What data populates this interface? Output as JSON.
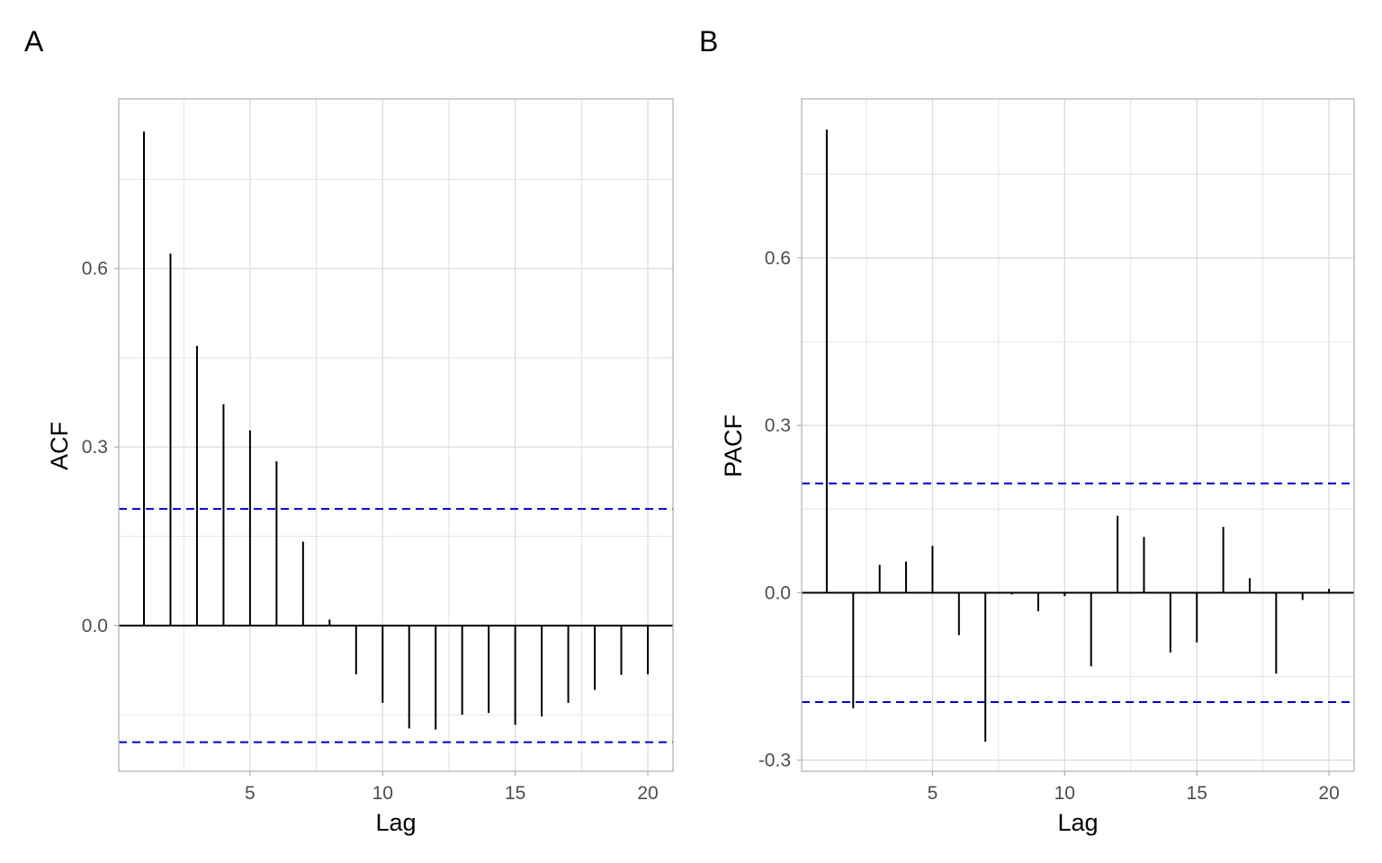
{
  "panels": {
    "a_label": "A",
    "b_label": "B"
  },
  "colors": {
    "bar": "#000000",
    "ci_line": "#0000cc",
    "grid": "#dcdcdc",
    "border": "#b3b3b3"
  },
  "chart_data": [
    {
      "type": "bar",
      "panel": "A",
      "xlabel": "Lag",
      "ylabel": "ACF",
      "xlim": [
        0.05,
        20.95
      ],
      "ylim": [
        -0.245,
        0.885
      ],
      "xticks": [
        5,
        10,
        15,
        20
      ],
      "xtick_labels": [
        "5",
        "10",
        "15",
        "20"
      ],
      "yticks": [
        0.0,
        0.3,
        0.6
      ],
      "ytick_labels": [
        "0.0",
        "0.3",
        "0.6"
      ],
      "grid": true,
      "confidence_band": [
        0.196,
        -0.196
      ],
      "x": [
        1,
        2,
        3,
        4,
        5,
        6,
        7,
        8,
        9,
        10,
        11,
        12,
        13,
        14,
        15,
        16,
        17,
        18,
        19,
        20
      ],
      "values": [
        0.83,
        0.625,
        0.47,
        0.372,
        0.328,
        0.276,
        0.141,
        0.01,
        -0.082,
        -0.13,
        -0.173,
        -0.175,
        -0.15,
        -0.147,
        -0.167,
        -0.153,
        -0.13,
        -0.108,
        -0.083,
        -0.082
      ]
    },
    {
      "type": "bar",
      "panel": "B",
      "xlabel": "Lag",
      "ylabel": "PACF",
      "xlim": [
        0.05,
        20.95
      ],
      "ylim": [
        -0.32,
        0.885
      ],
      "xticks": [
        5,
        10,
        15,
        20
      ],
      "xtick_labels": [
        "5",
        "10",
        "15",
        "20"
      ],
      "yticks": [
        -0.3,
        0.0,
        0.3,
        0.6
      ],
      "ytick_labels": [
        "-0.3",
        "0.0",
        "0.3",
        "0.6"
      ],
      "grid": true,
      "confidence_band": [
        0.196,
        -0.196
      ],
      "x": [
        1,
        2,
        3,
        4,
        5,
        6,
        7,
        8,
        9,
        10,
        11,
        12,
        13,
        14,
        15,
        16,
        17,
        18,
        19,
        20
      ],
      "values": [
        0.83,
        -0.207,
        0.05,
        0.056,
        0.084,
        -0.076,
        -0.267,
        -0.003,
        -0.033,
        -0.006,
        -0.132,
        0.138,
        0.1,
        -0.107,
        -0.089,
        0.118,
        0.026,
        -0.145,
        -0.013,
        0.007
      ]
    }
  ]
}
